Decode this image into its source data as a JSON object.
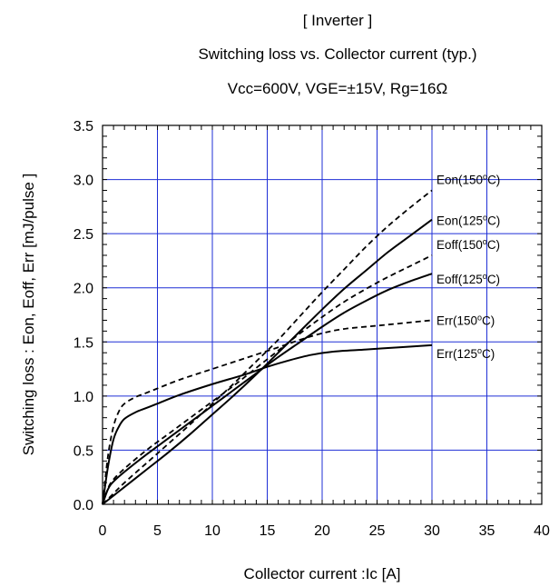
{
  "chart_data": {
    "type": "line",
    "title_lines": [
      "[ Inverter  ]",
      "Switching loss  vs.  Collector current  (typ.)",
      "Vcc=600V,  VGE=±15V,  Rg=16Ω"
    ],
    "xlabel": "Collector   current :Ic [A]",
    "ylabel": "Switching loss  : Eon, Eoff, Err  [mJ/pulse ]",
    "xlim": [
      0,
      40
    ],
    "ylim": [
      0,
      3.5
    ],
    "x_ticks": [
      0,
      5,
      10,
      15,
      20,
      25,
      30,
      35,
      40
    ],
    "y_ticks": [
      0.0,
      0.5,
      1.0,
      1.5,
      2.0,
      2.5,
      3.0,
      3.5
    ],
    "x_tick_labels": [
      "0",
      "5",
      "10",
      "15",
      "20",
      "25",
      "30",
      "35",
      "40"
    ],
    "y_tick_labels": [
      "0.0",
      "0.5",
      "1.0",
      "1.5",
      "2.0",
      "2.5",
      "3.0",
      "3.5"
    ],
    "grid": true,
    "grid_color": "#1f2fd6",
    "series": [
      {
        "label_parts": [
          "Eon(150",
          "o",
          "C)"
        ],
        "style": "dashed",
        "points": [
          [
            0,
            0
          ],
          [
            1,
            0.1
          ],
          [
            2,
            0.2
          ],
          [
            4,
            0.38
          ],
          [
            6,
            0.56
          ],
          [
            8,
            0.74
          ],
          [
            10,
            0.93
          ],
          [
            12,
            1.12
          ],
          [
            14,
            1.32
          ],
          [
            16,
            1.52
          ],
          [
            18,
            1.74
          ],
          [
            20,
            1.96
          ],
          [
            22,
            2.17
          ],
          [
            24,
            2.38
          ],
          [
            26,
            2.57
          ],
          [
            28,
            2.74
          ],
          [
            30,
            2.9
          ]
        ]
      },
      {
        "label_parts": [
          "Eon(125",
          "o",
          "C)"
        ],
        "style": "solid",
        "points": [
          [
            0,
            0
          ],
          [
            1,
            0.08
          ],
          [
            2,
            0.16
          ],
          [
            4,
            0.32
          ],
          [
            6,
            0.48
          ],
          [
            8,
            0.65
          ],
          [
            10,
            0.83
          ],
          [
            12,
            1.01
          ],
          [
            14,
            1.2
          ],
          [
            16,
            1.4
          ],
          [
            18,
            1.6
          ],
          [
            20,
            1.8
          ],
          [
            22,
            1.99
          ],
          [
            24,
            2.16
          ],
          [
            26,
            2.33
          ],
          [
            28,
            2.48
          ],
          [
            30,
            2.63
          ]
        ]
      },
      {
        "label_parts": [
          "Eoff(150",
          "o",
          "C)"
        ],
        "style": "dashed",
        "points": [
          [
            0,
            0
          ],
          [
            0.5,
            0.15
          ],
          [
            1,
            0.23
          ],
          [
            2,
            0.33
          ],
          [
            4,
            0.5
          ],
          [
            6,
            0.65
          ],
          [
            8,
            0.8
          ],
          [
            10,
            0.95
          ],
          [
            12,
            1.1
          ],
          [
            14,
            1.26
          ],
          [
            16,
            1.42
          ],
          [
            18,
            1.58
          ],
          [
            20,
            1.73
          ],
          [
            22,
            1.87
          ],
          [
            24,
            1.99
          ],
          [
            26,
            2.1
          ],
          [
            28,
            2.2
          ],
          [
            30,
            2.3
          ]
        ]
      },
      {
        "label_parts": [
          "Eoff(125",
          "o",
          "C)"
        ],
        "style": "solid",
        "points": [
          [
            0,
            0
          ],
          [
            0.5,
            0.14
          ],
          [
            1,
            0.21
          ],
          [
            2,
            0.3
          ],
          [
            4,
            0.46
          ],
          [
            6,
            0.61
          ],
          [
            8,
            0.76
          ],
          [
            10,
            0.91
          ],
          [
            12,
            1.06
          ],
          [
            14,
            1.21
          ],
          [
            16,
            1.36
          ],
          [
            18,
            1.5
          ],
          [
            20,
            1.64
          ],
          [
            22,
            1.77
          ],
          [
            24,
            1.88
          ],
          [
            26,
            1.98
          ],
          [
            28,
            2.06
          ],
          [
            30,
            2.13
          ]
        ]
      },
      {
        "label_parts": [
          "Err(150",
          "o",
          "C)"
        ],
        "style": "dashed",
        "points": [
          [
            0,
            0
          ],
          [
            0.5,
            0.45
          ],
          [
            1,
            0.72
          ],
          [
            1.5,
            0.86
          ],
          [
            2,
            0.93
          ],
          [
            3,
            0.99
          ],
          [
            4,
            1.03
          ],
          [
            5,
            1.07
          ],
          [
            7,
            1.15
          ],
          [
            10,
            1.25
          ],
          [
            13,
            1.35
          ],
          [
            16,
            1.45
          ],
          [
            18,
            1.52
          ],
          [
            20,
            1.58
          ],
          [
            22,
            1.62
          ],
          [
            25,
            1.65
          ],
          [
            28,
            1.68
          ],
          [
            30,
            1.7
          ]
        ]
      },
      {
        "label_parts": [
          "Err(125",
          "o",
          "C)"
        ],
        "style": "solid",
        "points": [
          [
            0,
            0
          ],
          [
            0.5,
            0.35
          ],
          [
            1,
            0.6
          ],
          [
            1.5,
            0.72
          ],
          [
            2,
            0.79
          ],
          [
            3,
            0.85
          ],
          [
            4,
            0.89
          ],
          [
            5,
            0.93
          ],
          [
            7,
            1.01
          ],
          [
            10,
            1.11
          ],
          [
            13,
            1.2
          ],
          [
            15,
            1.27
          ],
          [
            17,
            1.33
          ],
          [
            19,
            1.38
          ],
          [
            21,
            1.41
          ],
          [
            24,
            1.43
          ],
          [
            27,
            1.45
          ],
          [
            30,
            1.47
          ]
        ]
      }
    ]
  }
}
